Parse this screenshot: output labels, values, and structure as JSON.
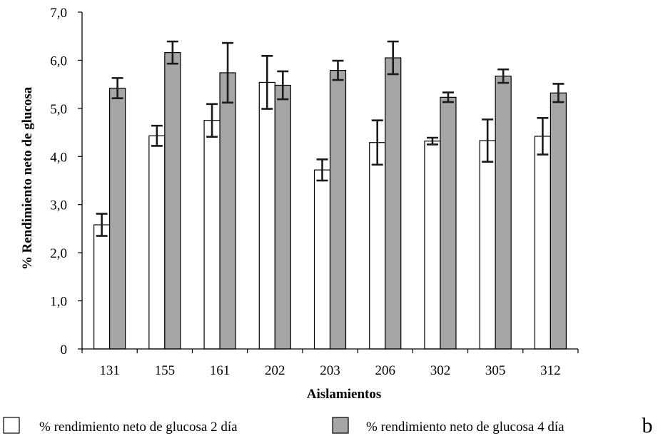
{
  "chart_data": {
    "type": "bar",
    "xlabel": "Aislamientos",
    "ylabel": "% Rendimiento neto de glucosa",
    "categories": [
      "131",
      "155",
      "161",
      "202",
      "203",
      "206",
      "302",
      "305",
      "312"
    ],
    "ylim": [
      0,
      7
    ],
    "yticks": [
      "0",
      "1,0",
      "2,0",
      "3,0",
      "4,0",
      "5,0",
      "6,0",
      "7,0"
    ],
    "grid": false,
    "legend_position": "bottom",
    "series": [
      {
        "name": "% rendimiento neto de glucosa 2 día",
        "color": "#ffffff",
        "values": [
          2.58,
          4.43,
          4.75,
          5.54,
          3.72,
          4.29,
          4.32,
          4.33,
          4.42
        ],
        "errors": [
          0.23,
          0.21,
          0.34,
          0.55,
          0.22,
          0.46,
          0.07,
          0.44,
          0.38
        ]
      },
      {
        "name": "% rendimiento neto de glucosa 4 día",
        "color": "#a6a6a6",
        "values": [
          5.42,
          6.16,
          5.74,
          5.48,
          5.79,
          6.05,
          5.23,
          5.67,
          5.32
        ],
        "errors": [
          0.21,
          0.23,
          0.62,
          0.29,
          0.2,
          0.34,
          0.1,
          0.14,
          0.19
        ]
      }
    ]
  },
  "panel_label": "b"
}
